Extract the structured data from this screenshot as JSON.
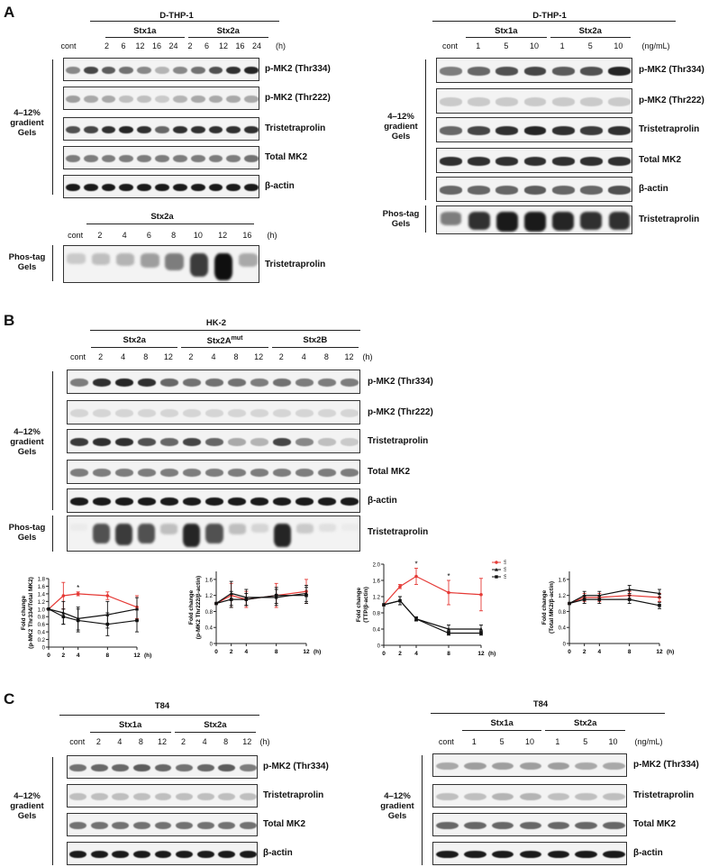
{
  "panelA": {
    "letter": "A",
    "left": {
      "cell": "D-THP-1",
      "groups": [
        "Stx1a",
        "Stx2a"
      ],
      "lanes": [
        "cont",
        "2",
        "6",
        "12",
        "16",
        "24",
        "2",
        "6",
        "12",
        "16",
        "24"
      ],
      "unit": "(h)",
      "rows": [
        "p-MK2 (Thr334)",
        "p-MK2 (Thr222)",
        "Tristetraprolin",
        "Total MK2",
        "β-actin"
      ],
      "side": "4–12%\ngradient\nGels",
      "band_levels": [
        [
          0.45,
          0.75,
          0.65,
          0.55,
          0.45,
          0.25,
          0.45,
          0.55,
          0.7,
          0.85,
          0.9
        ],
        [
          0.35,
          0.3,
          0.3,
          0.2,
          0.2,
          0.15,
          0.25,
          0.3,
          0.3,
          0.3,
          0.3
        ],
        [
          0.7,
          0.75,
          0.85,
          0.9,
          0.85,
          0.6,
          0.85,
          0.85,
          0.85,
          0.85,
          0.85
        ],
        [
          0.5,
          0.5,
          0.5,
          0.5,
          0.5,
          0.5,
          0.5,
          0.5,
          0.5,
          0.5,
          0.55
        ],
        [
          0.95,
          0.95,
          0.95,
          0.95,
          0.95,
          0.95,
          0.95,
          0.95,
          0.95,
          0.95,
          0.95
        ]
      ]
    },
    "phos": {
      "title": "Stx2a",
      "lanes": [
        "cont",
        "2",
        "4",
        "6",
        "8",
        "10",
        "12",
        "16"
      ],
      "unit": "(h)",
      "row": "Tristetraprolin",
      "side": "Phos-tag\nGels",
      "band_levels": [
        0.15,
        0.2,
        0.25,
        0.35,
        0.5,
        0.8,
        1.0,
        0.3
      ]
    },
    "right": {
      "cell": "D-THP-1",
      "groups": [
        "Stx1a",
        "Stx2a"
      ],
      "lanes": [
        "cont",
        "1",
        "5",
        "10",
        "1",
        "5",
        "10"
      ],
      "unit": "(ng/mL)",
      "rows": [
        "p-MK2 (Thr334)",
        "p-MK2 (Thr222)",
        "Tristetraprolin",
        "Total MK2",
        "β-actin"
      ],
      "side": "4–12%\ngradient\nGels",
      "phos_row": "Tristetraprolin",
      "phos_side": "Phos-tag\nGels",
      "band_levels": [
        [
          0.5,
          0.6,
          0.7,
          0.75,
          0.65,
          0.7,
          0.9
        ],
        [
          0.15,
          0.15,
          0.15,
          0.15,
          0.15,
          0.15,
          0.15
        ],
        [
          0.6,
          0.75,
          0.85,
          0.9,
          0.85,
          0.8,
          0.85
        ],
        [
          0.85,
          0.85,
          0.85,
          0.85,
          0.85,
          0.85,
          0.85
        ],
        [
          0.6,
          0.6,
          0.6,
          0.65,
          0.6,
          0.6,
          0.7
        ]
      ],
      "phos_levels": [
        0.5,
        0.85,
        0.95,
        0.95,
        0.9,
        0.85,
        0.85
      ]
    }
  },
  "panelB": {
    "letter": "B",
    "cell": "HK-2",
    "groups": [
      "Stx2a",
      "Stx2A",
      "Stx2B"
    ],
    "group_sup": [
      "",
      "mut",
      ""
    ],
    "lanes": [
      "cont",
      "2",
      "4",
      "8",
      "12",
      "2",
      "4",
      "8",
      "12",
      "2",
      "4",
      "8",
      "12"
    ],
    "unit": "(h)",
    "rows": [
      "p-MK2 (Thr334)",
      "p-MK2 (Thr222)",
      "Tristetraprolin",
      "Total MK2",
      "β-actin"
    ],
    "side": "4–12%\ngradient\nGels",
    "phos_row": "Tristetraprolin",
    "phos_side": "Phos-tag\nGels",
    "band_levels": [
      [
        0.5,
        0.85,
        0.9,
        0.85,
        0.6,
        0.55,
        0.55,
        0.55,
        0.5,
        0.55,
        0.5,
        0.5,
        0.5
      ],
      [
        0.1,
        0.1,
        0.1,
        0.1,
        0.1,
        0.1,
        0.1,
        0.1,
        0.1,
        0.1,
        0.1,
        0.1,
        0.1
      ],
      [
        0.8,
        0.85,
        0.85,
        0.7,
        0.6,
        0.75,
        0.6,
        0.3,
        0.25,
        0.75,
        0.45,
        0.2,
        0.15
      ],
      [
        0.5,
        0.5,
        0.5,
        0.5,
        0.5,
        0.5,
        0.5,
        0.5,
        0.5,
        0.5,
        0.5,
        0.5,
        0.5
      ],
      [
        0.95,
        0.95,
        0.95,
        0.95,
        0.95,
        0.95,
        0.95,
        0.95,
        0.95,
        0.95,
        0.95,
        0.95,
        0.95
      ]
    ],
    "phos_levels": [
      0.0,
      0.7,
      0.8,
      0.7,
      0.2,
      0.9,
      0.7,
      0.2,
      0.1,
      0.9,
      0.15,
      0.05,
      0.0
    ]
  },
  "chart_data": [
    {
      "type": "line",
      "ylabel": "Fold change\n(p-MK2 Thr334/Total MK2)",
      "xlabel": "(h)",
      "x": [
        0,
        2,
        4,
        8,
        12
      ],
      "ylim": [
        0,
        1.8
      ],
      "yticks": [
        "0",
        "0.2",
        "0.4",
        "0.6",
        "0.8",
        "1.0",
        "1.2",
        "1.4",
        "1.6",
        "1.8"
      ],
      "series": [
        {
          "color": "#e53935",
          "values": [
            1.0,
            1.35,
            1.4,
            1.35,
            1.05
          ],
          "err": [
            0,
            0.35,
            0.05,
            0.1,
            0.3
          ]
        },
        {
          "color": "#111111",
          "values": [
            1.0,
            0.9,
            0.75,
            0.85,
            1.0
          ],
          "err": [
            0,
            0.3,
            0.3,
            0.35,
            0.3
          ]
        },
        {
          "color": "#111111",
          "values": [
            1.0,
            0.8,
            0.7,
            0.6,
            0.7
          ],
          "err": [
            0,
            0.2,
            0.3,
            0.3,
            0.3
          ]
        }
      ],
      "stars": [
        {
          "x": 4,
          "label": "*"
        }
      ]
    },
    {
      "type": "line",
      "ylabel": "Fold change\n(p-MK2 Thr222/β-actin)",
      "xlabel": "(h)",
      "x": [
        0,
        2,
        4,
        8,
        12
      ],
      "ylim": [
        0,
        1.8
      ],
      "yticks": [
        "0",
        "0.4",
        "0.8",
        "1.2",
        "1.6"
      ],
      "series": [
        {
          "color": "#e53935",
          "values": [
            1.0,
            1.2,
            1.1,
            1.2,
            1.3
          ],
          "err": [
            0,
            0.3,
            0.2,
            0.3,
            0.3
          ]
        },
        {
          "color": "#111111",
          "values": [
            1.0,
            1.25,
            1.15,
            1.15,
            1.25
          ],
          "err": [
            0,
            0.3,
            0.2,
            0.2,
            0.2
          ]
        },
        {
          "color": "#111111",
          "values": [
            1.0,
            1.1,
            1.1,
            1.2,
            1.2
          ],
          "err": [
            0,
            0.2,
            0.15,
            0.2,
            0.2
          ]
        }
      ],
      "stars": []
    },
    {
      "type": "line",
      "ylabel": "Fold change\n(TTP/β-actin)",
      "xlabel": "(h)",
      "x": [
        0,
        2,
        4,
        8,
        12
      ],
      "ylim": [
        0,
        2.0
      ],
      "yticks": [
        "0",
        "0.4",
        "0.8",
        "1.2",
        "1.6",
        "2.0"
      ],
      "series": [
        {
          "name": "Stx2a",
          "color": "#e53935",
          "values": [
            1.0,
            1.45,
            1.7,
            1.3,
            1.25
          ],
          "err": [
            0,
            0.05,
            0.2,
            0.3,
            0.4
          ]
        },
        {
          "name": "Stx2a",
          "sup": "mut",
          "color": "#111111",
          "values": [
            1.0,
            1.1,
            0.65,
            0.4,
            0.4
          ],
          "err": [
            0,
            0.1,
            0.05,
            0.1,
            0.1
          ]
        },
        {
          "name": "Stx2B",
          "color": "#111111",
          "values": [
            1.0,
            1.1,
            0.65,
            0.3,
            0.3
          ],
          "err": [
            0,
            0.1,
            0.05,
            0.05,
            0.05
          ]
        }
      ],
      "stars": [
        {
          "x": 4,
          "label": "*"
        },
        {
          "x": 8,
          "label": "*"
        }
      ]
    },
    {
      "type": "line",
      "ylabel": "Fold change\n(Total MK2/β-actin)",
      "xlabel": "(h)",
      "x": [
        0,
        2,
        4,
        8,
        12
      ],
      "ylim": [
        0,
        1.8
      ],
      "yticks": [
        "0",
        "0.4",
        "0.8",
        "1.2",
        "1.6"
      ],
      "series": [
        {
          "color": "#e53935",
          "values": [
            1.0,
            1.15,
            1.15,
            1.2,
            1.15
          ],
          "err": [
            0,
            0.1,
            0.1,
            0.1,
            0.1
          ]
        },
        {
          "color": "#111111",
          "values": [
            1.0,
            1.2,
            1.2,
            1.35,
            1.25
          ],
          "err": [
            0,
            0.1,
            0.1,
            0.1,
            0.1
          ]
        },
        {
          "color": "#111111",
          "values": [
            1.0,
            1.1,
            1.1,
            1.1,
            0.95
          ],
          "err": [
            0,
            0.1,
            0.1,
            0.1,
            0.08
          ]
        }
      ],
      "stars": []
    }
  ],
  "panelC": {
    "letter": "C",
    "left": {
      "cell": "T84",
      "groups": [
        "Stx1a",
        "Stx2a"
      ],
      "lanes": [
        "cont",
        "2",
        "4",
        "8",
        "12",
        "2",
        "4",
        "8",
        "12"
      ],
      "unit": "(h)",
      "rows": [
        "p-MK2 (Thr334)",
        "Tristetraprolin",
        "Total MK2",
        "β-actin"
      ],
      "side": "4–12%\ngradient\nGels",
      "band_levels": [
        [
          0.55,
          0.6,
          0.6,
          0.65,
          0.6,
          0.55,
          0.6,
          0.65,
          0.5
        ],
        [
          0.2,
          0.2,
          0.2,
          0.2,
          0.2,
          0.2,
          0.2,
          0.2,
          0.2
        ],
        [
          0.55,
          0.55,
          0.55,
          0.55,
          0.55,
          0.55,
          0.55,
          0.55,
          0.55
        ],
        [
          0.95,
          0.95,
          0.95,
          0.95,
          0.95,
          0.95,
          0.95,
          0.95,
          0.95
        ]
      ]
    },
    "right": {
      "cell": "T84",
      "groups": [
        "Stx1a",
        "Stx2a"
      ],
      "lanes": [
        "cont",
        "1",
        "5",
        "10",
        "1",
        "5",
        "10"
      ],
      "unit": "(ng/mL)",
      "rows": [
        "p-MK2 (Thr334)",
        "Tristetraprolin",
        "Total MK2",
        "β-actin"
      ],
      "side": "4–12%\ngradient\nGels",
      "band_levels": [
        [
          0.3,
          0.35,
          0.35,
          0.35,
          0.35,
          0.3,
          0.3
        ],
        [
          0.2,
          0.2,
          0.25,
          0.25,
          0.2,
          0.2,
          0.2
        ],
        [
          0.6,
          0.6,
          0.6,
          0.6,
          0.6,
          0.6,
          0.6
        ],
        [
          0.95,
          0.95,
          0.95,
          0.95,
          0.95,
          0.95,
          0.95
        ]
      ]
    }
  }
}
